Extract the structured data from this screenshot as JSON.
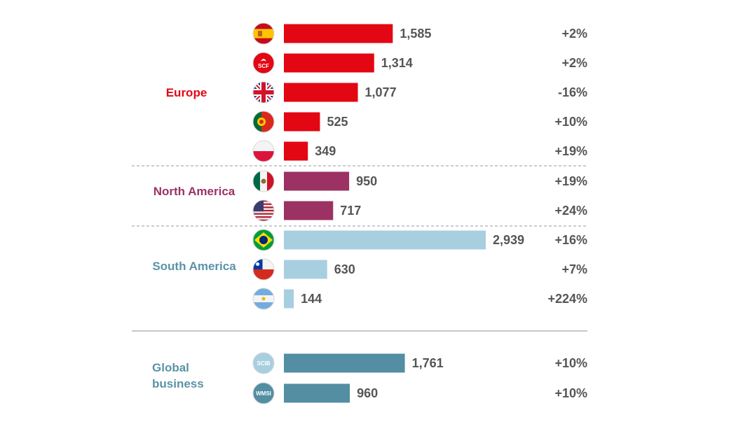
{
  "chart_data": {
    "type": "bar",
    "orientation": "horizontal",
    "groups": [
      {
        "name": "Europe",
        "color": "#e30613",
        "items": [
          {
            "icon": "spain-flag-icon",
            "value": 1585,
            "value_label": "1,585",
            "change": "+2%"
          },
          {
            "icon": "scf-logo-icon",
            "icon_text": "SCF",
            "value": 1314,
            "value_label": "1,314",
            "change": "+2%"
          },
          {
            "icon": "uk-flag-icon",
            "value": 1077,
            "value_label": "1,077",
            "change": "-16%"
          },
          {
            "icon": "portugal-flag-icon",
            "value": 525,
            "value_label": "525",
            "change": "+10%"
          },
          {
            "icon": "poland-flag-icon",
            "value": 349,
            "value_label": "349",
            "change": "+19%"
          }
        ]
      },
      {
        "name": "North America",
        "color": "#9b3263",
        "items": [
          {
            "icon": "mexico-flag-icon",
            "value": 950,
            "value_label": "950",
            "change": "+19%"
          },
          {
            "icon": "usa-flag-icon",
            "value": 717,
            "value_label": "717",
            "change": "+24%"
          }
        ]
      },
      {
        "name": "South America",
        "color": "#a8cfe0",
        "label_color": "#5a93a8",
        "items": [
          {
            "icon": "brazil-flag-icon",
            "value": 2939,
            "value_label": "2,939",
            "change": "+16%"
          },
          {
            "icon": "chile-flag-icon",
            "value": 630,
            "value_label": "630",
            "change": "+7%"
          },
          {
            "icon": "argentina-flag-icon",
            "value": 144,
            "value_label": "144",
            "change": "+224%"
          }
        ]
      },
      {
        "name": "Global business",
        "color": "#538ea2",
        "label_color": "#5a93a8",
        "items": [
          {
            "icon": "scib-logo-icon",
            "icon_text": "SCIB",
            "value": 1761,
            "value_label": "1,761",
            "change": "+10%"
          },
          {
            "icon": "wmsi-logo-icon",
            "icon_text": "WMSI",
            "value": 960,
            "value_label": "960",
            "change": "+10%"
          }
        ]
      }
    ],
    "xlim": [
      0,
      2939
    ],
    "grid": false,
    "legend": "none"
  }
}
